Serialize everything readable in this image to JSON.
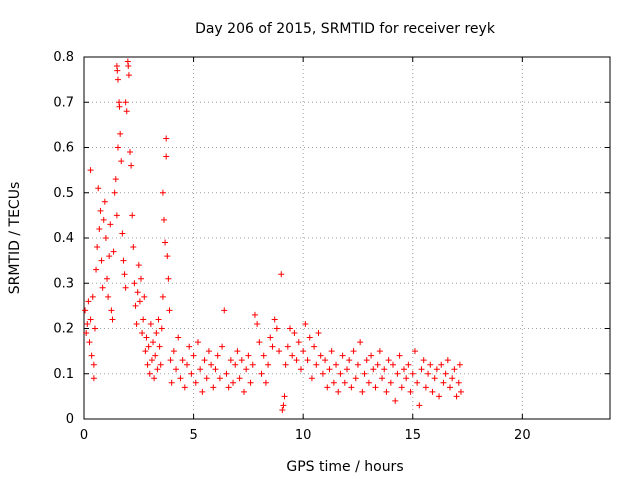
{
  "chart_data": {
    "type": "scatter",
    "title": "Day 206 of 2015, SRMTID for receiver reyk",
    "xlabel": "GPS time / hours",
    "ylabel": "SRMTID / TECUs",
    "xlim": [
      0,
      24
    ],
    "ylim": [
      0,
      0.8
    ],
    "xticks": [
      0,
      5,
      10,
      15,
      20
    ],
    "yticks": [
      0,
      0.1,
      0.2,
      0.3,
      0.4,
      0.5,
      0.6,
      0.7,
      0.8
    ],
    "xtick_labels": [
      "0",
      "5",
      "10",
      "15",
      "20"
    ],
    "ytick_labels": [
      "0",
      "0.1",
      "0.2",
      "0.3",
      "0.4",
      "0.5",
      "0.6",
      "0.7",
      "0.8"
    ],
    "grid": true,
    "marker": "+",
    "color": "#ff0000",
    "series": [
      {
        "name": "SRMTID",
        "points": [
          [
            0.05,
            0.24
          ],
          [
            0.1,
            0.19
          ],
          [
            0.15,
            0.21
          ],
          [
            0.2,
            0.26
          ],
          [
            0.25,
            0.17
          ],
          [
            0.3,
            0.22
          ],
          [
            0.35,
            0.14
          ],
          [
            0.4,
            0.27
          ],
          [
            0.45,
            0.12
          ],
          [
            0.5,
            0.2
          ],
          [
            0.3,
            0.55
          ],
          [
            0.45,
            0.09
          ],
          [
            0.55,
            0.33
          ],
          [
            0.6,
            0.38
          ],
          [
            0.65,
            0.51
          ],
          [
            0.7,
            0.42
          ],
          [
            0.75,
            0.46
          ],
          [
            0.8,
            0.35
          ],
          [
            0.85,
            0.29
          ],
          [
            0.9,
            0.44
          ],
          [
            0.95,
            0.48
          ],
          [
            1.0,
            0.4
          ],
          [
            1.05,
            0.31
          ],
          [
            1.1,
            0.27
          ],
          [
            1.15,
            0.36
          ],
          [
            1.2,
            0.43
          ],
          [
            1.25,
            0.24
          ],
          [
            1.3,
            0.22
          ],
          [
            1.35,
            0.37
          ],
          [
            1.4,
            0.5
          ],
          [
            1.45,
            0.53
          ],
          [
            1.5,
            0.45
          ],
          [
            1.55,
            0.6
          ],
          [
            1.5,
            0.78
          ],
          [
            1.52,
            0.77
          ],
          [
            1.55,
            0.75
          ],
          [
            1.6,
            0.7
          ],
          [
            1.62,
            0.69
          ],
          [
            1.65,
            0.63
          ],
          [
            1.7,
            0.57
          ],
          [
            1.75,
            0.41
          ],
          [
            1.8,
            0.35
          ],
          [
            1.85,
            0.32
          ],
          [
            1.9,
            0.29
          ],
          [
            1.9,
            0.7
          ],
          [
            1.95,
            0.68
          ],
          [
            2.0,
            0.79
          ],
          [
            2.02,
            0.78
          ],
          [
            2.05,
            0.76
          ],
          [
            2.1,
            0.59
          ],
          [
            2.15,
            0.56
          ],
          [
            2.2,
            0.45
          ],
          [
            2.25,
            0.38
          ],
          [
            2.3,
            0.3
          ],
          [
            2.35,
            0.25
          ],
          [
            2.4,
            0.21
          ],
          [
            2.45,
            0.28
          ],
          [
            2.5,
            0.34
          ],
          [
            2.55,
            0.26
          ],
          [
            2.6,
            0.31
          ],
          [
            2.65,
            0.19
          ],
          [
            2.7,
            0.22
          ],
          [
            2.75,
            0.27
          ],
          [
            2.8,
            0.15
          ],
          [
            2.85,
            0.18
          ],
          [
            2.9,
            0.12
          ],
          [
            2.95,
            0.16
          ],
          [
            3.0,
            0.1
          ],
          [
            3.05,
            0.21
          ],
          [
            3.1,
            0.13
          ],
          [
            3.15,
            0.17
          ],
          [
            3.2,
            0.09
          ],
          [
            3.25,
            0.14
          ],
          [
            3.3,
            0.19
          ],
          [
            3.35,
            0.11
          ],
          [
            3.4,
            0.22
          ],
          [
            3.45,
            0.16
          ],
          [
            3.5,
            0.12
          ],
          [
            3.55,
            0.2
          ],
          [
            3.6,
            0.27
          ],
          [
            3.6,
            0.5
          ],
          [
            3.65,
            0.44
          ],
          [
            3.7,
            0.39
          ],
          [
            3.75,
            0.62
          ],
          [
            3.75,
            0.58
          ],
          [
            3.8,
            0.36
          ],
          [
            3.85,
            0.31
          ],
          [
            3.9,
            0.24
          ],
          [
            3.95,
            0.13
          ],
          [
            4.0,
            0.08
          ],
          [
            4.1,
            0.15
          ],
          [
            4.2,
            0.11
          ],
          [
            4.3,
            0.18
          ],
          [
            4.4,
            0.09
          ],
          [
            4.5,
            0.13
          ],
          [
            4.6,
            0.07
          ],
          [
            4.7,
            0.12
          ],
          [
            4.8,
            0.16
          ],
          [
            4.9,
            0.1
          ],
          [
            5.0,
            0.14
          ],
          [
            5.1,
            0.08
          ],
          [
            5.2,
            0.17
          ],
          [
            5.3,
            0.11
          ],
          [
            5.4,
            0.06
          ],
          [
            5.5,
            0.13
          ],
          [
            5.6,
            0.09
          ],
          [
            5.7,
            0.15
          ],
          [
            5.8,
            0.12
          ],
          [
            5.9,
            0.07
          ],
          [
            6.0,
            0.11
          ],
          [
            6.1,
            0.14
          ],
          [
            6.2,
            0.09
          ],
          [
            6.3,
            0.16
          ],
          [
            6.4,
            0.24
          ],
          [
            6.5,
            0.1
          ],
          [
            6.6,
            0.07
          ],
          [
            6.7,
            0.13
          ],
          [
            6.8,
            0.08
          ],
          [
            6.9,
            0.12
          ],
          [
            7.0,
            0.15
          ],
          [
            7.1,
            0.09
          ],
          [
            7.2,
            0.13
          ],
          [
            7.3,
            0.06
          ],
          [
            7.4,
            0.11
          ],
          [
            7.5,
            0.14
          ],
          [
            7.6,
            0.08
          ],
          [
            7.7,
            0.12
          ],
          [
            7.8,
            0.23
          ],
          [
            7.9,
            0.21
          ],
          [
            8.0,
            0.17
          ],
          [
            8.1,
            0.1
          ],
          [
            8.2,
            0.14
          ],
          [
            8.3,
            0.08
          ],
          [
            8.4,
            0.12
          ],
          [
            8.5,
            0.18
          ],
          [
            8.6,
            0.16
          ],
          [
            8.7,
            0.22
          ],
          [
            8.8,
            0.2
          ],
          [
            8.9,
            0.15
          ],
          [
            9.0,
            0.32
          ],
          [
            9.05,
            0.02
          ],
          [
            9.1,
            0.03
          ],
          [
            9.15,
            0.05
          ],
          [
            9.2,
            0.12
          ],
          [
            9.3,
            0.16
          ],
          [
            9.4,
            0.2
          ],
          [
            9.5,
            0.14
          ],
          [
            9.6,
            0.19
          ],
          [
            9.7,
            0.13
          ],
          [
            9.8,
            0.17
          ],
          [
            9.9,
            0.11
          ],
          [
            10.0,
            0.15
          ],
          [
            10.1,
            0.21
          ],
          [
            10.2,
            0.13
          ],
          [
            10.3,
            0.18
          ],
          [
            10.4,
            0.09
          ],
          [
            10.5,
            0.16
          ],
          [
            10.6,
            0.12
          ],
          [
            10.7,
            0.19
          ],
          [
            10.8,
            0.14
          ],
          [
            10.9,
            0.1
          ],
          [
            11.0,
            0.13
          ],
          [
            11.1,
            0.07
          ],
          [
            11.2,
            0.11
          ],
          [
            11.3,
            0.15
          ],
          [
            11.4,
            0.08
          ],
          [
            11.5,
            0.12
          ],
          [
            11.6,
            0.06
          ],
          [
            11.7,
            0.1
          ],
          [
            11.8,
            0.14
          ],
          [
            11.9,
            0.08
          ],
          [
            12.0,
            0.11
          ],
          [
            12.1,
            0.13
          ],
          [
            12.2,
            0.07
          ],
          [
            12.3,
            0.15
          ],
          [
            12.4,
            0.09
          ],
          [
            12.5,
            0.12
          ],
          [
            12.6,
            0.17
          ],
          [
            12.7,
            0.06
          ],
          [
            12.8,
            0.1
          ],
          [
            12.9,
            0.13
          ],
          [
            13.0,
            0.08
          ],
          [
            13.1,
            0.14
          ],
          [
            13.2,
            0.11
          ],
          [
            13.3,
            0.07
          ],
          [
            13.4,
            0.12
          ],
          [
            13.5,
            0.15
          ],
          [
            13.6,
            0.09
          ],
          [
            13.7,
            0.11
          ],
          [
            13.8,
            0.06
          ],
          [
            13.9,
            0.13
          ],
          [
            14.0,
            0.08
          ],
          [
            14.1,
            0.12
          ],
          [
            14.2,
            0.04
          ],
          [
            14.3,
            0.1
          ],
          [
            14.4,
            0.14
          ],
          [
            14.5,
            0.07
          ],
          [
            14.6,
            0.11
          ],
          [
            14.7,
            0.09
          ],
          [
            14.8,
            0.12
          ],
          [
            14.9,
            0.06
          ],
          [
            15.0,
            0.1
          ],
          [
            15.1,
            0.15
          ],
          [
            15.2,
            0.08
          ],
          [
            15.3,
            0.03
          ],
          [
            15.4,
            0.11
          ],
          [
            15.5,
            0.13
          ],
          [
            15.6,
            0.07
          ],
          [
            15.7,
            0.1
          ],
          [
            15.8,
            0.12
          ],
          [
            15.9,
            0.06
          ],
          [
            16.0,
            0.09
          ],
          [
            16.1,
            0.11
          ],
          [
            16.2,
            0.05
          ],
          [
            16.3,
            0.12
          ],
          [
            16.4,
            0.08
          ],
          [
            16.5,
            0.1
          ],
          [
            16.6,
            0.13
          ],
          [
            16.7,
            0.07
          ],
          [
            16.8,
            0.09
          ],
          [
            16.9,
            0.11
          ],
          [
            17.0,
            0.05
          ],
          [
            17.1,
            0.08
          ],
          [
            17.15,
            0.12
          ],
          [
            17.2,
            0.06
          ]
        ]
      }
    ]
  }
}
